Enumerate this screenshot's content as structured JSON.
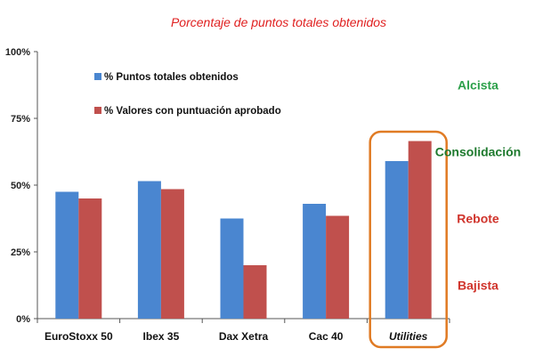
{
  "chart_data": {
    "type": "bar",
    "title": "Porcentaje de puntos totales obtenidos",
    "categories": [
      "EuroStoxx 50",
      "Ibex 35",
      "Dax Xetra",
      "Cac 40",
      "Utilities"
    ],
    "series": [
      {
        "name": "% Puntos totales obtenidos",
        "values": [
          47.5,
          51.5,
          37.5,
          43,
          59
        ],
        "color": "#4A86D0"
      },
      {
        "name": "% Valores con puntuación aprobado",
        "values": [
          45,
          48.5,
          20,
          38.5,
          66.5
        ],
        "color": "#C0504D"
      }
    ],
    "ylim": [
      0,
      100
    ],
    "yticks": [
      "0%",
      "25%",
      "50%",
      "75%",
      "100%"
    ],
    "ytick_values": [
      0,
      25,
      50,
      75,
      100
    ],
    "legend": "top-left",
    "grid": false,
    "highlight": {
      "category": "Utilities",
      "color": "#E07B24"
    },
    "annotations": [
      {
        "text": "Alcista",
        "color": "#2CA04A",
        "level": 87.5
      },
      {
        "text": "Consolidación",
        "color": "#1E7A2E",
        "level": 62.5
      },
      {
        "text": "Rebote",
        "color": "#D0342C",
        "level": 37.5
      },
      {
        "text": "Bajista",
        "color": "#D0342C",
        "level": 12.5
      }
    ],
    "colors": {
      "title": "#E02020",
      "axis": "#555555"
    }
  }
}
